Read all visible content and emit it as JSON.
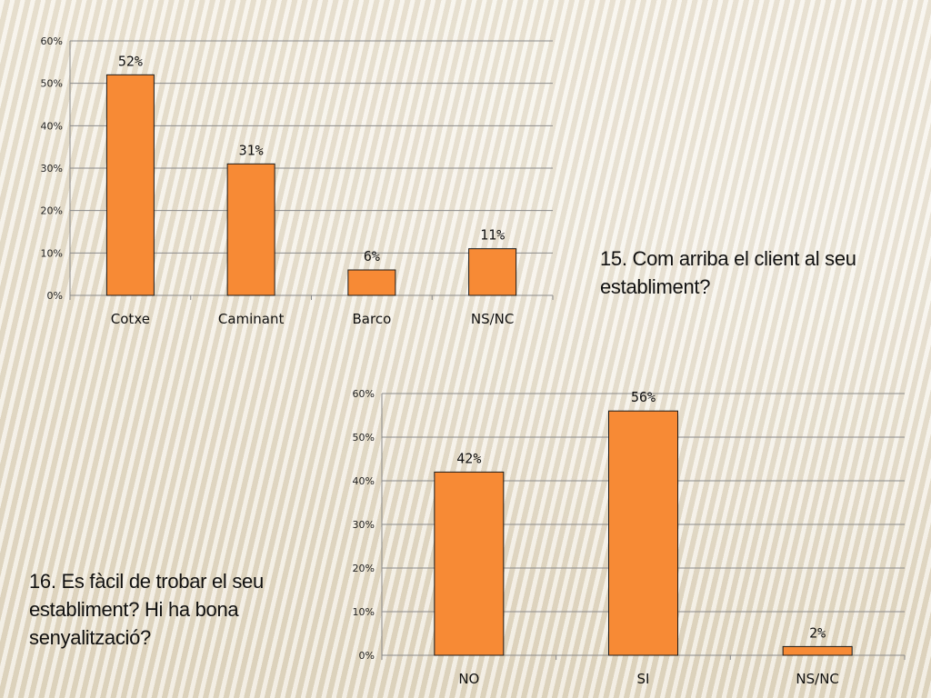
{
  "slide": {
    "caption_q15": "15. Com arriba el client al seu establiment?",
    "caption_q16": "16. Es fàcil de trobar el seu establiment? Hi ha bona senyalització?"
  },
  "colors": {
    "bar_fill": "#f78a35",
    "bar_stroke": "#1a1a1a",
    "grid": "#8a8a8a"
  },
  "chart_data": [
    {
      "type": "bar",
      "categories": [
        "Cotxe",
        "Caminant",
        "Barco",
        "NS/NC"
      ],
      "values": [
        52,
        31,
        6,
        11
      ],
      "data_labels": [
        "52%",
        "31%",
        "6%",
        "11%"
      ],
      "ylim": [
        0,
        60
      ],
      "yticks": [
        0,
        10,
        20,
        30,
        40,
        50,
        60
      ],
      "ytick_labels": [
        "0%",
        "10%",
        "20%",
        "30%",
        "40%",
        "50%",
        "60%"
      ],
      "grid": true,
      "legend": "none"
    },
    {
      "type": "bar",
      "categories": [
        "NO",
        "SI",
        "NS/NC"
      ],
      "values": [
        42,
        56,
        2
      ],
      "data_labels": [
        "42%",
        "56%",
        "2%"
      ],
      "ylim": [
        0,
        60
      ],
      "yticks": [
        0,
        10,
        20,
        30,
        40,
        50,
        60
      ],
      "ytick_labels": [
        "0%",
        "10%",
        "20%",
        "30%",
        "40%",
        "50%",
        "60%"
      ],
      "grid": true,
      "legend": "none"
    }
  ]
}
